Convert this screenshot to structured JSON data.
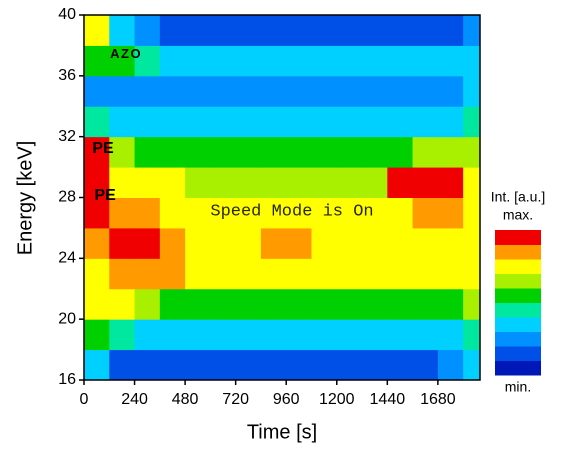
{
  "chart_data": {
    "type": "heatmap",
    "xlabel": "Time  [s]",
    "ylabel": "Energy  [keV]",
    "xlim": [
      0,
      1880
    ],
    "ylim": [
      16,
      40
    ],
    "xticks": [
      0,
      240,
      480,
      720,
      960,
      1200,
      1440,
      1680
    ],
    "yticks": [
      16,
      20,
      24,
      28,
      32,
      36,
      40
    ],
    "x_edges": [
      0,
      120,
      240,
      360,
      480,
      600,
      720,
      840,
      960,
      1080,
      1200,
      1320,
      1440,
      1560,
      1680,
      1800,
      1880
    ],
    "y_edges": [
      16,
      18,
      20,
      22,
      24,
      26,
      28,
      30,
      32,
      34,
      36,
      38,
      40
    ],
    "z": [
      [
        3,
        1,
        1,
        1,
        1,
        1,
        1,
        1,
        1,
        1,
        1,
        1,
        1,
        1,
        2,
        3
      ],
      [
        5,
        4,
        3,
        3,
        3,
        3,
        3,
        3,
        3,
        3,
        3,
        3,
        3,
        3,
        3,
        4
      ],
      [
        7,
        7,
        6,
        5,
        5,
        5,
        5,
        5,
        5,
        5,
        5,
        5,
        5,
        5,
        5,
        6
      ],
      [
        7,
        8,
        8,
        8,
        7,
        7,
        7,
        7,
        7,
        7,
        7,
        7,
        7,
        7,
        7,
        7
      ],
      [
        8,
        9,
        9,
        8,
        7,
        7,
        7,
        8,
        8,
        7,
        7,
        7,
        7,
        7,
        7,
        7
      ],
      [
        9,
        8,
        8,
        7,
        7,
        7,
        7,
        7,
        7,
        7,
        7,
        7,
        7,
        8,
        8,
        7
      ],
      [
        9,
        7,
        7,
        7,
        6,
        6,
        6,
        6,
        6,
        6,
        6,
        6,
        9,
        9,
        9,
        7
      ],
      [
        9,
        6,
        5,
        5,
        5,
        5,
        5,
        5,
        5,
        5,
        5,
        5,
        5,
        6,
        6,
        6
      ],
      [
        4,
        3,
        3,
        3,
        3,
        3,
        3,
        3,
        3,
        3,
        3,
        3,
        3,
        3,
        3,
        4
      ],
      [
        2,
        2,
        2,
        2,
        2,
        2,
        2,
        2,
        2,
        2,
        2,
        2,
        2,
        2,
        2,
        3
      ],
      [
        5,
        5,
        4,
        3,
        3,
        3,
        3,
        3,
        3,
        3,
        3,
        3,
        3,
        3,
        3,
        3
      ],
      [
        7,
        3,
        2,
        1,
        1,
        1,
        1,
        1,
        1,
        1,
        1,
        1,
        1,
        1,
        1,
        2
      ]
    ],
    "colorscale": [
      "#0018b8",
      "#0050e8",
      "#0090ff",
      "#00d0ff",
      "#00e8a0",
      "#00d000",
      "#a8f000",
      "#ffff00",
      "#ff9a00",
      "#f00000"
    ],
    "colorbar_title": "Int. [a.u.]",
    "colorbar_max_label": "max.",
    "colorbar_min_label": "min.",
    "annotations": [
      {
        "text": "AZO",
        "x": 200,
        "y": 37.4
      },
      {
        "text": "PE",
        "x": 90,
        "y": 31.2
      },
      {
        "text": "PE",
        "x": 100,
        "y": 28.1
      }
    ],
    "watermark": "Speed Mode is On"
  }
}
